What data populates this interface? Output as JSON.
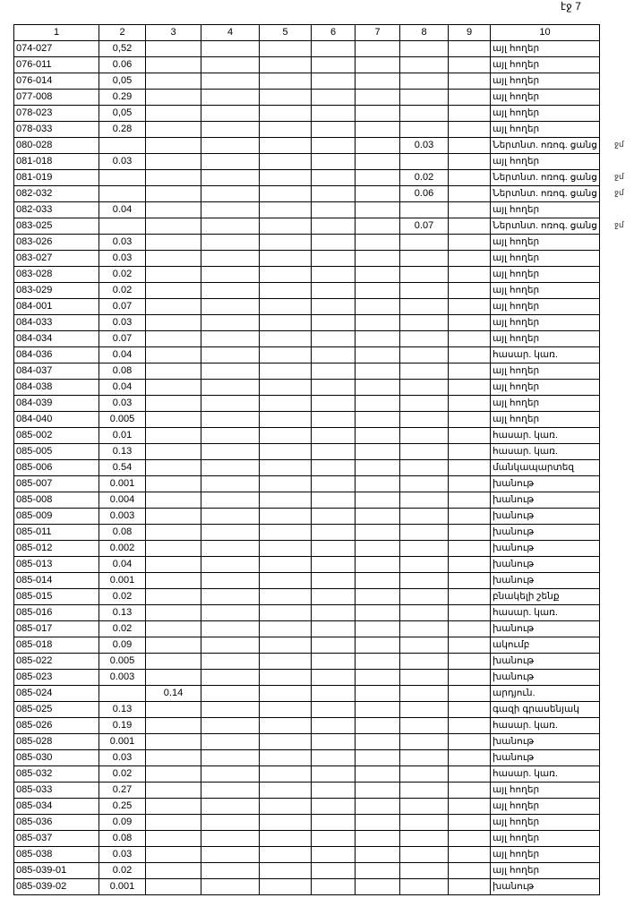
{
  "page_label": "էջ 7",
  "headers": [
    "1",
    "2",
    "3",
    "4",
    "5",
    "6",
    "7",
    "8",
    "9",
    "10"
  ],
  "rows": [
    [
      "074-027",
      "0,52",
      "",
      "",
      "",
      "",
      "",
      "",
      "",
      "այլ հողեր"
    ],
    [
      "076-011",
      "0.06",
      "",
      "",
      "",
      "",
      "",
      "",
      "",
      "այլ հողեր"
    ],
    [
      "076-014",
      "0,05",
      "",
      "",
      "",
      "",
      "",
      "",
      "",
      "այլ հողեր"
    ],
    [
      "077-008",
      "0.29",
      "",
      "",
      "",
      "",
      "",
      "",
      "",
      "այլ հողեր"
    ],
    [
      "078-023",
      "0,05",
      "",
      "",
      "",
      "",
      "",
      "",
      "",
      "այլ հողեր"
    ],
    [
      "078-033",
      "0.28",
      "",
      "",
      "",
      "",
      "",
      "",
      "",
      "այլ հողեր"
    ],
    [
      "080-028",
      "",
      "",
      "",
      "",
      "",
      "",
      "0.03",
      "",
      "Ներտնտ. ոռոգ. ցանց"
    ],
    [
      "081-018",
      "0.03",
      "",
      "",
      "",
      "",
      "",
      "",
      "",
      "այլ հողեր"
    ],
    [
      "081-019",
      "",
      "",
      "",
      "",
      "",
      "",
      "0.02",
      "",
      "Ներտնտ. ոռոգ. ցանց"
    ],
    [
      "082-032",
      "",
      "",
      "",
      "",
      "",
      "",
      "0.06",
      "",
      "Ներտնտ. ոռոգ. ցանց"
    ],
    [
      "082-033",
      "0.04",
      "",
      "",
      "",
      "",
      "",
      "",
      "",
      "այլ հողեր"
    ],
    [
      "083-025",
      "",
      "",
      "",
      "",
      "",
      "",
      "0.07",
      "",
      "Ներտնտ. ոռոգ. ցանց"
    ],
    [
      "083-026",
      "0.03",
      "",
      "",
      "",
      "",
      "",
      "",
      "",
      "այլ հողեր"
    ],
    [
      "083-027",
      "0.03",
      "",
      "",
      "",
      "",
      "",
      "",
      "",
      "այլ հողեր"
    ],
    [
      "083-028",
      "0.02",
      "",
      "",
      "",
      "",
      "",
      "",
      "",
      "այլ հողեր"
    ],
    [
      "083-029",
      "0.02",
      "",
      "",
      "",
      "",
      "",
      "",
      "",
      "այլ հողեր"
    ],
    [
      "084-001",
      "0.07",
      "",
      "",
      "",
      "",
      "",
      "",
      "",
      "այլ հողեր"
    ],
    [
      "084-033",
      "0.03",
      "",
      "",
      "",
      "",
      "",
      "",
      "",
      "այլ հողեր"
    ],
    [
      "084-034",
      "0.07",
      "",
      "",
      "",
      "",
      "",
      "",
      "",
      "այլ հողեր"
    ],
    [
      "084-036",
      "0.04",
      "",
      "",
      "",
      "",
      "",
      "",
      "",
      "հասար. կառ."
    ],
    [
      "084-037",
      "0.08",
      "",
      "",
      "",
      "",
      "",
      "",
      "",
      "այլ հողեր"
    ],
    [
      "084-038",
      "0.04",
      "",
      "",
      "",
      "",
      "",
      "",
      "",
      "այլ հողեր"
    ],
    [
      "084-039",
      "0.03",
      "",
      "",
      "",
      "",
      "",
      "",
      "",
      "այլ հողեր"
    ],
    [
      "084-040",
      "0.005",
      "",
      "",
      "",
      "",
      "",
      "",
      "",
      "այլ հողեր"
    ],
    [
      "085-002",
      "0.01",
      "",
      "",
      "",
      "",
      "",
      "",
      "",
      "հասար. կառ."
    ],
    [
      "085-005",
      "0.13",
      "",
      "",
      "",
      "",
      "",
      "",
      "",
      "հասար. կառ."
    ],
    [
      "085-006",
      "0.54",
      "",
      "",
      "",
      "",
      "",
      "",
      "",
      "մանկապարտեզ"
    ],
    [
      "085-007",
      "0.001",
      "",
      "",
      "",
      "",
      "",
      "",
      "",
      "խանութ"
    ],
    [
      "085-008",
      "0.004",
      "",
      "",
      "",
      "",
      "",
      "",
      "",
      "խանութ"
    ],
    [
      "085-009",
      "0.003",
      "",
      "",
      "",
      "",
      "",
      "",
      "",
      "խանութ"
    ],
    [
      "085-011",
      "0.08",
      "",
      "",
      "",
      "",
      "",
      "",
      "",
      "խանութ"
    ],
    [
      "085-012",
      "0.002",
      "",
      "",
      "",
      "",
      "",
      "",
      "",
      "խանութ"
    ],
    [
      "085-013",
      "0.04",
      "",
      "",
      "",
      "",
      "",
      "",
      "",
      "խանութ"
    ],
    [
      "085-014",
      "0.001",
      "",
      "",
      "",
      "",
      "",
      "",
      "",
      "խանութ"
    ],
    [
      "085-015",
      "0.02",
      "",
      "",
      "",
      "",
      "",
      "",
      "",
      "բնակելի շենք"
    ],
    [
      "085-016",
      "0.13",
      "",
      "",
      "",
      "",
      "",
      "",
      "",
      "հասար. կառ."
    ],
    [
      "085-017",
      "0.02",
      "",
      "",
      "",
      "",
      "",
      "",
      "",
      "խանութ"
    ],
    [
      "085-018",
      "0.09",
      "",
      "",
      "",
      "",
      "",
      "",
      "",
      "ակումբ"
    ],
    [
      "085-022",
      "0.005",
      "",
      "",
      "",
      "",
      "",
      "",
      "",
      "խանութ"
    ],
    [
      "085-023",
      "0.003",
      "",
      "",
      "",
      "",
      "",
      "",
      "",
      "խանութ"
    ],
    [
      "085-024",
      "",
      "0.14",
      "",
      "",
      "",
      "",
      "",
      "",
      "արդյուն."
    ],
    [
      "085-025",
      "0.13",
      "",
      "",
      "",
      "",
      "",
      "",
      "",
      "գազի գրասենյակ"
    ],
    [
      "085-026",
      "0.19",
      "",
      "",
      "",
      "",
      "",
      "",
      "",
      "հասար. կառ."
    ],
    [
      "085-028",
      "0.001",
      "",
      "",
      "",
      "",
      "",
      "",
      "",
      "խանութ"
    ],
    [
      "085-030",
      "0.03",
      "",
      "",
      "",
      "",
      "",
      "",
      "",
      "խանութ"
    ],
    [
      "085-032",
      "0.02",
      "",
      "",
      "",
      "",
      "",
      "",
      "",
      "հասար. կառ."
    ],
    [
      "085-033",
      "0.27",
      "",
      "",
      "",
      "",
      "",
      "",
      "",
      "այլ հողեր"
    ],
    [
      "085-034",
      "0.25",
      "",
      "",
      "",
      "",
      "",
      "",
      "",
      "այլ հողեր"
    ],
    [
      "085-036",
      "0.09",
      "",
      "",
      "",
      "",
      "",
      "",
      "",
      "այլ հողեր"
    ],
    [
      "085-037",
      "0.08",
      "",
      "",
      "",
      "",
      "",
      "",
      "",
      "այլ հողեր"
    ],
    [
      "085-038",
      "0.03",
      "",
      "",
      "",
      "",
      "",
      "",
      "",
      "այլ հողեր"
    ],
    [
      "085-039-01",
      "0.02",
      "",
      "",
      "",
      "",
      "",
      "",
      "",
      "այլ հողեր"
    ],
    [
      "085-039-02",
      "0.001",
      "",
      "",
      "",
      "",
      "",
      "",
      "",
      "խանութ"
    ]
  ],
  "margin_notes": [
    {
      "row": 6,
      "text": "ջմ"
    },
    {
      "row": 8,
      "text": "ջմ"
    },
    {
      "row": 9,
      "text": "ջմ"
    },
    {
      "row": 11,
      "text": "ջմ"
    }
  ]
}
